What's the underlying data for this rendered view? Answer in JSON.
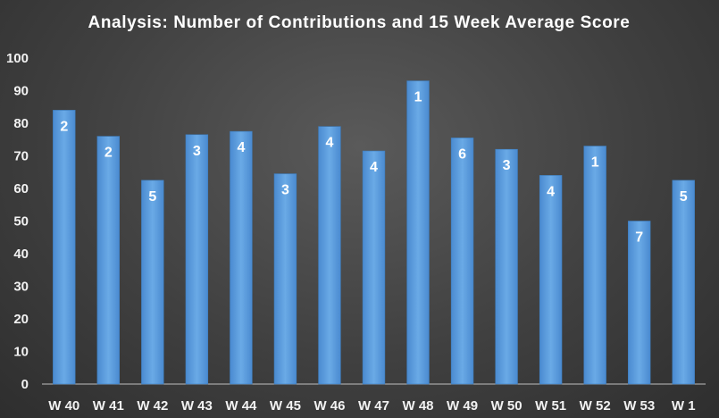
{
  "chart_data": {
    "type": "bar",
    "title": "Analysis:  Number  of  Contributions  and  15  Week  Average  Score",
    "xlabel": "",
    "ylabel": "",
    "ylim": [
      0,
      100
    ],
    "yticks": [
      0,
      10,
      20,
      30,
      40,
      50,
      60,
      70,
      80,
      90,
      100
    ],
    "grid": false,
    "legend": "none",
    "bar_color": "#5b9bd5",
    "categories": [
      "W 40",
      "W 41",
      "W 42",
      "W 43",
      "W 44",
      "W 45",
      "W 46",
      "W 47",
      "W 48",
      "W 49",
      "W 50",
      "W 51",
      "W 52",
      "W 53",
      "W 1"
    ],
    "values": [
      84,
      76,
      62.5,
      76.5,
      77.5,
      64.5,
      79,
      71.5,
      93,
      75.5,
      72,
      64,
      73,
      50,
      62.5
    ],
    "data_labels": [
      "2",
      "2",
      "5",
      "3",
      "4",
      "3",
      "4",
      "4",
      "1",
      "6",
      "3",
      "4",
      "1",
      "7",
      "5"
    ]
  }
}
